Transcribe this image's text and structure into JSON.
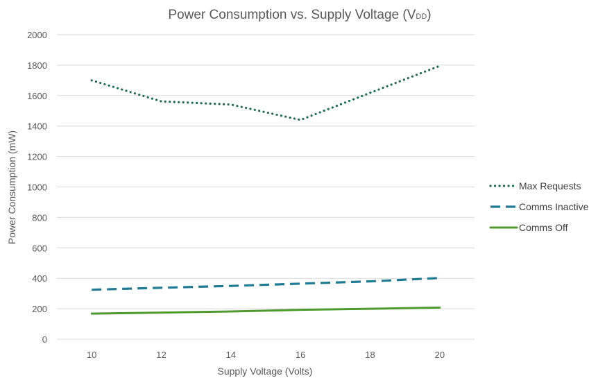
{
  "chart_data": {
    "type": "line",
    "title": "Power Consumption vs. Supply Voltage (V",
    "title_subscript": "DD",
    "title_suffix": ")",
    "xlabel": "Supply Voltage (Volts)",
    "ylabel": "Power Consumption (mW)",
    "x": [
      10,
      12,
      14,
      16,
      18,
      20
    ],
    "x_tick_labels": [
      "10",
      "12",
      "14",
      "16",
      "18",
      "20"
    ],
    "xlim": [
      9,
      21
    ],
    "ylim": [
      0,
      2000
    ],
    "y_tick_labels": [
      "0",
      "200",
      "400",
      "600",
      "800",
      "1000",
      "1200",
      "1400",
      "1600",
      "1800",
      "2000"
    ],
    "y_ticks": [
      0,
      200,
      400,
      600,
      800,
      1000,
      1200,
      1400,
      1600,
      1800,
      2000
    ],
    "grid": true,
    "legend_position": "right",
    "series": [
      {
        "name": "Max Requests",
        "values": [
          1700,
          1562,
          1541,
          1440,
          1618,
          1795
        ],
        "color": "#1e6b4e",
        "style": "dotted"
      },
      {
        "name": "Comms Inactive",
        "values": [
          325,
          338,
          350,
          365,
          380,
          402
        ],
        "color": "#1f7a94",
        "style": "dashed"
      },
      {
        "name": "Comms Off",
        "values": [
          168,
          175,
          182,
          193,
          200,
          208
        ],
        "color": "#4f9a2e",
        "style": "solid"
      }
    ]
  }
}
